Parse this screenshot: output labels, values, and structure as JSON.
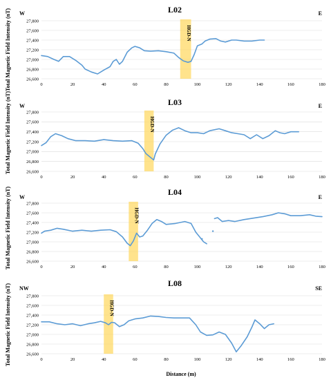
{
  "figure": {
    "ylabel": "Total Magnetic Field Intensity (nT)",
    "xlabel": "Distance (m)"
  },
  "colors": {
    "series": "#5b9bd5",
    "zone": "#ffd966",
    "grid": "#d9d9d9"
  },
  "chart_data": [
    {
      "type": "line",
      "title": "L02",
      "left_label": "W",
      "right_label": "E",
      "xlim": [
        0,
        180
      ],
      "ylim": [
        26600,
        27800
      ],
      "xticks": [
        0,
        20,
        40,
        60,
        80,
        100,
        120,
        140,
        160,
        180
      ],
      "yticks": [
        26600,
        26800,
        27000,
        27200,
        27400,
        27600,
        27800
      ],
      "ytick_labels": [
        "26,600",
        "26,800",
        "27,000",
        "27,200",
        "27,400",
        "27,600",
        "27,800"
      ],
      "zone": {
        "label": "HGD-N",
        "x_start": 89,
        "x_end": 96
      },
      "series": [
        {
          "segments": [
            [
              [
                0,
                27080
              ],
              [
                4,
                27060
              ],
              [
                8,
                27000
              ],
              [
                11,
                26960
              ],
              [
                14,
                27060
              ],
              [
                18,
                27060
              ],
              [
                22,
                26980
              ],
              [
                26,
                26880
              ],
              [
                28,
                26800
              ],
              [
                32,
                26740
              ],
              [
                36,
                26700
              ],
              [
                40,
                26780
              ],
              [
                44,
                26850
              ],
              [
                46,
                26960
              ],
              [
                48,
                27000
              ],
              [
                50,
                26900
              ],
              [
                52,
                26960
              ],
              [
                55,
                27150
              ],
              [
                58,
                27240
              ],
              [
                60,
                27270
              ],
              [
                63,
                27240
              ],
              [
                66,
                27180
              ],
              [
                70,
                27170
              ],
              [
                75,
                27180
              ],
              [
                80,
                27160
              ],
              [
                85,
                27130
              ],
              [
                88,
                27040
              ],
              [
                91,
                26970
              ],
              [
                94,
                26940
              ],
              [
                96,
                26960
              ],
              [
                98,
                27100
              ],
              [
                100,
                27280
              ],
              [
                103,
                27320
              ],
              [
                105,
                27380
              ],
              [
                108,
                27420
              ],
              [
                112,
                27430
              ],
              [
                115,
                27380
              ],
              [
                118,
                27360
              ],
              [
                122,
                27400
              ],
              [
                125,
                27400
              ],
              [
                130,
                27380
              ],
              [
                135,
                27380
              ],
              [
                140,
                27400
              ],
              [
                143,
                27400
              ]
            ]
          ]
        }
      ]
    },
    {
      "type": "line",
      "title": "L03",
      "left_label": "W",
      "right_label": "E",
      "xlim": [
        0,
        180
      ],
      "ylim": [
        26600,
        27800
      ],
      "xticks": [
        0,
        20,
        40,
        60,
        80,
        100,
        120,
        140,
        160,
        180
      ],
      "yticks": [
        26600,
        26800,
        27000,
        27200,
        27400,
        27600,
        27800
      ],
      "ytick_labels": [
        "26,600",
        "26,800",
        "27,000",
        "27,200",
        "27,400",
        "27,600",
        "27,800"
      ],
      "zone": {
        "label": "HGD-N",
        "x_start": 66,
        "x_end": 72
      },
      "series": [
        {
          "segments": [
            [
              [
                0,
                27120
              ],
              [
                3,
                27180
              ],
              [
                6,
                27300
              ],
              [
                9,
                27360
              ],
              [
                13,
                27320
              ],
              [
                17,
                27260
              ],
              [
                22,
                27220
              ],
              [
                28,
                27220
              ],
              [
                34,
                27210
              ],
              [
                40,
                27240
              ],
              [
                46,
                27220
              ],
              [
                52,
                27210
              ],
              [
                58,
                27220
              ],
              [
                62,
                27170
              ],
              [
                65,
                27060
              ],
              [
                67,
                26960
              ],
              [
                70,
                26880
              ],
              [
                72,
                26830
              ],
              [
                73,
                26950
              ],
              [
                76,
                27150
              ],
              [
                80,
                27330
              ],
              [
                84,
                27430
              ],
              [
                88,
                27480
              ],
              [
                92,
                27420
              ],
              [
                96,
                27380
              ],
              [
                100,
                27380
              ],
              [
                104,
                27360
              ],
              [
                108,
                27420
              ],
              [
                114,
                27460
              ],
              [
                118,
                27420
              ],
              [
                122,
                27380
              ],
              [
                126,
                27360
              ],
              [
                130,
                27340
              ],
              [
                134,
                27260
              ],
              [
                138,
                27340
              ],
              [
                142,
                27260
              ],
              [
                146,
                27320
              ],
              [
                150,
                27420
              ],
              [
                153,
                27380
              ],
              [
                156,
                27360
              ],
              [
                160,
                27400
              ],
              [
                165,
                27400
              ]
            ]
          ]
        }
      ]
    },
    {
      "type": "line",
      "title": "L04",
      "left_label": "W",
      "right_label": "E",
      "xlim": [
        0,
        180
      ],
      "ylim": [
        26600,
        27800
      ],
      "xticks": [
        0,
        20,
        40,
        60,
        80,
        100,
        120,
        140,
        160,
        180
      ],
      "yticks": [
        26600,
        26800,
        27000,
        27200,
        27400,
        27600,
        27800
      ],
      "ytick_labels": [
        "26,600",
        "26,800",
        "27,000",
        "27,200",
        "27,400",
        "27,600",
        "27,800"
      ],
      "zone": {
        "label": "HGD-N",
        "x_start": 56,
        "x_end": 62
      },
      "series": [
        {
          "segments": [
            [
              [
                0,
                27180
              ],
              [
                2,
                27220
              ],
              [
                6,
                27240
              ],
              [
                10,
                27280
              ],
              [
                14,
                27260
              ],
              [
                20,
                27220
              ],
              [
                26,
                27240
              ],
              [
                32,
                27220
              ],
              [
                38,
                27240
              ],
              [
                44,
                27250
              ],
              [
                48,
                27210
              ],
              [
                52,
                27100
              ],
              [
                55,
                26970
              ],
              [
                57,
                26920
              ],
              [
                59,
                27020
              ],
              [
                61,
                27180
              ],
              [
                63,
                27100
              ],
              [
                65,
                27120
              ],
              [
                68,
                27240
              ],
              [
                71,
                27380
              ],
              [
                74,
                27460
              ],
              [
                77,
                27420
              ],
              [
                80,
                27360
              ],
              [
                86,
                27380
              ],
              [
                92,
                27420
              ],
              [
                96,
                27380
              ],
              [
                99,
                27200
              ],
              [
                102,
                27080
              ],
              [
                104,
                27000
              ],
              [
                106,
                26960
              ]
            ],
            [
              [
                111,
                27480
              ],
              [
                113,
                27500
              ],
              [
                116,
                27420
              ],
              [
                120,
                27440
              ],
              [
                124,
                27420
              ],
              [
                130,
                27460
              ],
              [
                136,
                27490
              ],
              [
                142,
                27520
              ],
              [
                148,
                27560
              ],
              [
                152,
                27600
              ],
              [
                156,
                27580
              ],
              [
                160,
                27540
              ],
              [
                166,
                27540
              ],
              [
                172,
                27560
              ],
              [
                176,
                27530
              ],
              [
                180,
                27520
              ]
            ]
          ]
        },
        {
          "segments": [
            [
              [
                103,
                27060
              ]
            ],
            [
              [
                110,
                27220
              ]
            ]
          ]
        }
      ]
    },
    {
      "type": "line",
      "title": "L08",
      "left_label": "NW",
      "right_label": "SE",
      "xlim": [
        0,
        180
      ],
      "ylim": [
        26600,
        27800
      ],
      "xticks": [
        0,
        20,
        40,
        60,
        80,
        100,
        120,
        140,
        160,
        180
      ],
      "yticks": [
        26600,
        26800,
        27000,
        27200,
        27400,
        27600,
        27800
      ],
      "ytick_labels": [
        "26,600",
        "26,800",
        "27,000",
        "27,200",
        "27,400",
        "27,600",
        "27,800"
      ],
      "zone": {
        "label": "HGD-N",
        "x_start": 40,
        "x_end": 46
      },
      "series": [
        {
          "segments": [
            [
              [
                0,
                27260
              ],
              [
                5,
                27260
              ],
              [
                10,
                27220
              ],
              [
                15,
                27200
              ],
              [
                20,
                27220
              ],
              [
                25,
                27180
              ],
              [
                30,
                27220
              ],
              [
                34,
                27240
              ],
              [
                38,
                27270
              ],
              [
                41,
                27240
              ],
              [
                43,
                27200
              ],
              [
                45,
                27250
              ],
              [
                47,
                27240
              ],
              [
                50,
                27160
              ],
              [
                53,
                27200
              ],
              [
                56,
                27280
              ],
              [
                60,
                27320
              ],
              [
                65,
                27340
              ],
              [
                70,
                27380
              ],
              [
                75,
                27370
              ],
              [
                80,
                27350
              ],
              [
                85,
                27340
              ],
              [
                90,
                27340
              ],
              [
                95,
                27340
              ],
              [
                99,
                27200
              ],
              [
                102,
                27050
              ],
              [
                106,
                26980
              ],
              [
                110,
                26990
              ],
              [
                114,
                27050
              ],
              [
                118,
                27000
              ],
              [
                122,
                26820
              ],
              [
                125,
                26640
              ],
              [
                128,
                26760
              ],
              [
                132,
                26950
              ],
              [
                135,
                27150
              ],
              [
                137,
                27300
              ],
              [
                140,
                27220
              ],
              [
                143,
                27120
              ],
              [
                146,
                27200
              ],
              [
                149,
                27220
              ]
            ]
          ]
        }
      ]
    }
  ]
}
